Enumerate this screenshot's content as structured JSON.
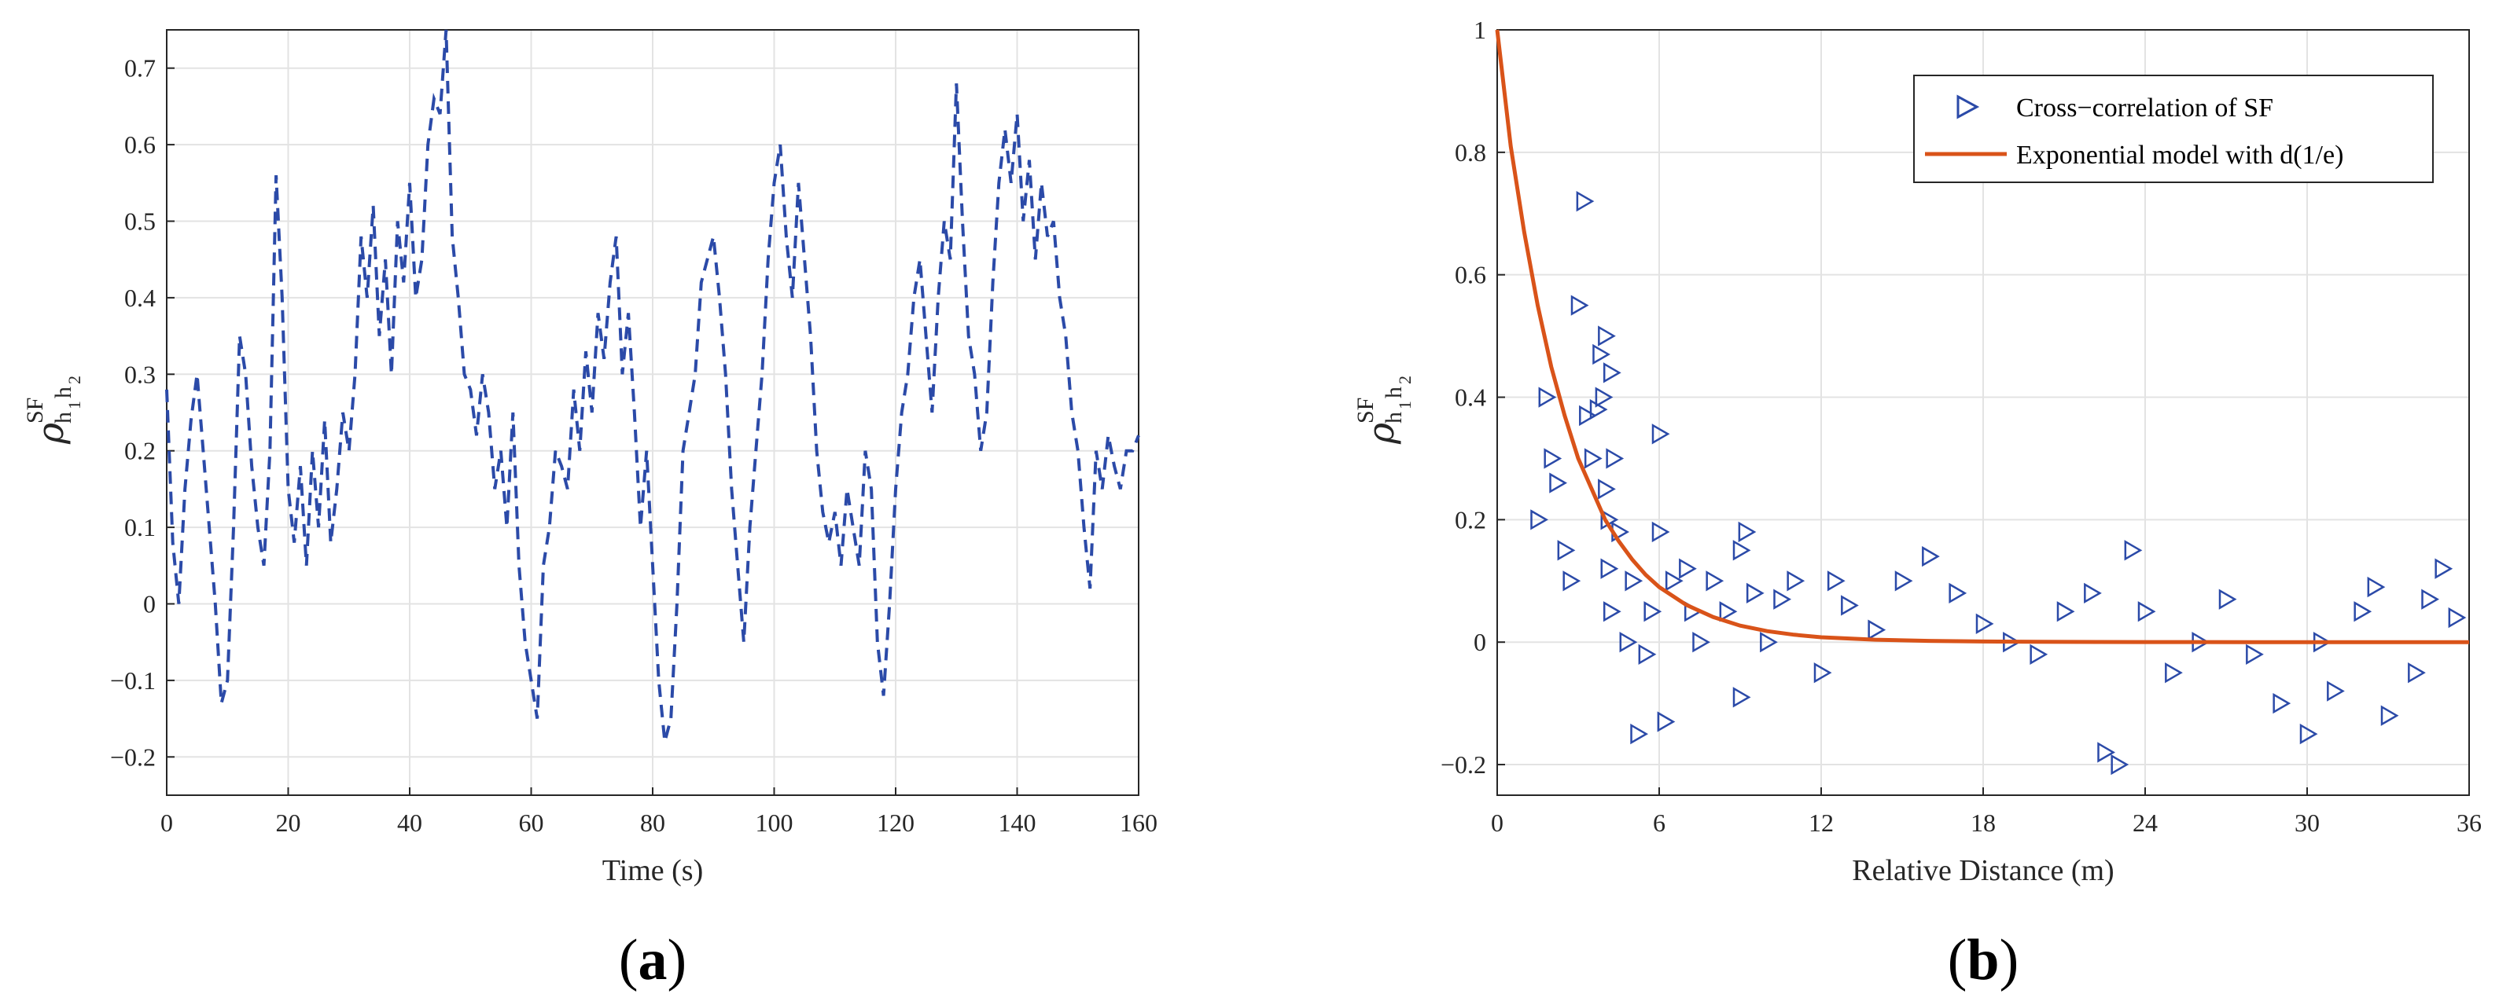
{
  "panels": [
    {
      "label_open": "(",
      "label_letter": "a",
      "label_close": ")"
    },
    {
      "label_open": "(",
      "label_letter": "b",
      "label_close": ")"
    }
  ],
  "chart_data": [
    {
      "type": "line",
      "xlabel": "Time (s)",
      "ylabel_symbol": "ρ",
      "ylabel_superscript": "SF",
      "ylabel_subscript": "h",
      "ylabel_sub1": "1",
      "ylabel_sub2": "h",
      "ylabel_sub3": "2",
      "xlim": [
        0,
        160
      ],
      "ylim": [
        -0.25,
        0.75
      ],
      "xticks": [
        0,
        20,
        40,
        60,
        80,
        100,
        120,
        140,
        160
      ],
      "yticks": [
        -0.2,
        -0.1,
        0,
        0.1,
        0.2,
        0.3,
        0.4,
        0.5,
        0.6,
        0.7
      ],
      "ytick_labels": [
        "−0.2",
        "−0.1",
        "0",
        "0.1",
        "0.2",
        "0.3",
        "0.4",
        "0.5",
        "0.6",
        "0.7"
      ],
      "grid": true,
      "line_style": "dashed",
      "color": "#2b4aa8",
      "series": [
        {
          "x": [
            0,
            1,
            2,
            3,
            4,
            5,
            6,
            7,
            8,
            9,
            10,
            11,
            12,
            13,
            14,
            15,
            16,
            17,
            18,
            19,
            20,
            21,
            22,
            23,
            24,
            25,
            26,
            27,
            28,
            29,
            30,
            31,
            32,
            33,
            34,
            35,
            36,
            37,
            38,
            39,
            40,
            41,
            42,
            43,
            44,
            45,
            46,
            47,
            48,
            49,
            50,
            51,
            52,
            53,
            54,
            55,
            56,
            57,
            58,
            59,
            60,
            61,
            62,
            63,
            64,
            65,
            66,
            67,
            68,
            69,
            70,
            71,
            72,
            73,
            74,
            75,
            76,
            77,
            78,
            79,
            80,
            81,
            82,
            83,
            84,
            85,
            86,
            87,
            88,
            89,
            90,
            91,
            92,
            93,
            94,
            95,
            96,
            97,
            98,
            99,
            100,
            101,
            102,
            103,
            104,
            105,
            106,
            107,
            108,
            109,
            110,
            111,
            112,
            113,
            114,
            115,
            116,
            117,
            118,
            119,
            120,
            121,
            122,
            123,
            124,
            125,
            126,
            127,
            128,
            129,
            130,
            131,
            132,
            133,
            134,
            135,
            136,
            137,
            138,
            139,
            140,
            141,
            142,
            143,
            144,
            145,
            146,
            147,
            148,
            149,
            150,
            151,
            152,
            153,
            154,
            155,
            156,
            157,
            158,
            159,
            160
          ],
          "y": [
            0.28,
            0.08,
            0.0,
            0.15,
            0.24,
            0.3,
            0.2,
            0.1,
            0.0,
            -0.13,
            -0.1,
            0.1,
            0.35,
            0.3,
            0.18,
            0.1,
            0.05,
            0.2,
            0.56,
            0.4,
            0.15,
            0.08,
            0.18,
            0.05,
            0.2,
            0.1,
            0.24,
            0.08,
            0.15,
            0.25,
            0.2,
            0.3,
            0.48,
            0.4,
            0.52,
            0.35,
            0.45,
            0.3,
            0.5,
            0.42,
            0.55,
            0.4,
            0.45,
            0.6,
            0.66,
            0.64,
            0.75,
            0.48,
            0.4,
            0.3,
            0.28,
            0.22,
            0.3,
            0.25,
            0.15,
            0.2,
            0.1,
            0.25,
            0.05,
            -0.05,
            -0.1,
            -0.15,
            0.05,
            0.1,
            0.2,
            0.18,
            0.15,
            0.28,
            0.2,
            0.33,
            0.25,
            0.38,
            0.32,
            0.42,
            0.48,
            0.3,
            0.38,
            0.25,
            0.1,
            0.2,
            0.05,
            -0.1,
            -0.18,
            -0.15,
            0.0,
            0.2,
            0.25,
            0.3,
            0.42,
            0.45,
            0.48,
            0.4,
            0.3,
            0.15,
            0.05,
            -0.05,
            0.1,
            0.2,
            0.3,
            0.45,
            0.55,
            0.6,
            0.48,
            0.4,
            0.55,
            0.45,
            0.35,
            0.2,
            0.12,
            0.08,
            0.12,
            0.05,
            0.15,
            0.1,
            0.05,
            0.2,
            0.15,
            -0.05,
            -0.12,
            0.0,
            0.15,
            0.25,
            0.3,
            0.4,
            0.45,
            0.35,
            0.25,
            0.4,
            0.5,
            0.45,
            0.68,
            0.5,
            0.35,
            0.3,
            0.2,
            0.25,
            0.42,
            0.55,
            0.62,
            0.55,
            0.64,
            0.5,
            0.58,
            0.45,
            0.55,
            0.48,
            0.5,
            0.4,
            0.35,
            0.25,
            0.2,
            0.1,
            0.02,
            0.2,
            0.15,
            0.22,
            0.18,
            0.15,
            0.2,
            0.2,
            0.22
          ]
        }
      ]
    },
    {
      "type": "scatter",
      "xlabel": "Relative Distance (m)",
      "ylabel_symbol": "ρ",
      "ylabel_superscript": "SF",
      "ylabel_subscript": "h",
      "ylabel_sub1": "1",
      "ylabel_sub2": "h",
      "ylabel_sub3": "2",
      "xlim": [
        0,
        36
      ],
      "ylim": [
        -0.25,
        1
      ],
      "xticks": [
        0,
        6,
        12,
        18,
        24,
        30,
        36
      ],
      "yticks": [
        -0.2,
        0,
        0.2,
        0.4,
        0.6,
        0.8,
        1
      ],
      "ytick_labels": [
        "−0.2",
        "0",
        "0.2",
        "0.4",
        "0.6",
        "0.8",
        "1"
      ],
      "grid": true,
      "legend_position": "top-right",
      "legend": [
        "Cross−correlation of SF",
        "Exponential model with d(1/e)"
      ],
      "colors": {
        "scatter": "#2b4aa8",
        "model": "#d95319"
      },
      "series": [
        {
          "name": "Cross−correlation of SF",
          "marker": "triangle-right",
          "points": [
            [
              1.5,
              0.2
            ],
            [
              1.8,
              0.4
            ],
            [
              2,
              0.3
            ],
            [
              2.2,
              0.26
            ],
            [
              2.5,
              0.15
            ],
            [
              2.7,
              0.1
            ],
            [
              3.0,
              0.55
            ],
            [
              3.2,
              0.72
            ],
            [
              3.3,
              0.37
            ],
            [
              3.5,
              0.3
            ],
            [
              3.7,
              0.38
            ],
            [
              3.8,
              0.47
            ],
            [
              3.9,
              0.4
            ],
            [
              4.0,
              0.5
            ],
            [
              4.0,
              0.25
            ],
            [
              4.1,
              0.2
            ],
            [
              4.1,
              0.12
            ],
            [
              4.2,
              0.05
            ],
            [
              4.2,
              0.44
            ],
            [
              4.3,
              0.3
            ],
            [
              4.5,
              0.18
            ],
            [
              4.8,
              0.0
            ],
            [
              5.0,
              0.1
            ],
            [
              5.2,
              -0.15
            ],
            [
              5.5,
              -0.02
            ],
            [
              5.7,
              0.05
            ],
            [
              6.0,
              0.34
            ],
            [
              6.0,
              0.18
            ],
            [
              6.2,
              -0.13
            ],
            [
              6.5,
              0.1
            ],
            [
              7.0,
              0.12
            ],
            [
              7.2,
              0.05
            ],
            [
              7.5,
              0.0
            ],
            [
              8.0,
              0.1
            ],
            [
              8.5,
              0.05
            ],
            [
              9.0,
              0.15
            ],
            [
              9.0,
              -0.09
            ],
            [
              9.2,
              0.18
            ],
            [
              9.5,
              0.08
            ],
            [
              10.0,
              0.0
            ],
            [
              10.5,
              0.07
            ],
            [
              11.0,
              0.1
            ],
            [
              12.0,
              -0.05
            ],
            [
              12.5,
              0.1
            ],
            [
              13.0,
              0.06
            ],
            [
              14.0,
              0.02
            ],
            [
              15.0,
              0.1
            ],
            [
              16.0,
              0.14
            ],
            [
              17.0,
              0.08
            ],
            [
              18.0,
              0.03
            ],
            [
              19.0,
              0.0
            ],
            [
              20.0,
              -0.02
            ],
            [
              21.0,
              0.05
            ],
            [
              22.0,
              0.08
            ],
            [
              22.5,
              -0.18
            ],
            [
              23.0,
              -0.2
            ],
            [
              23.5,
              0.15
            ],
            [
              24.0,
              0.05
            ],
            [
              25.0,
              -0.05
            ],
            [
              26.0,
              0.0
            ],
            [
              27.0,
              0.07
            ],
            [
              28.0,
              -0.02
            ],
            [
              29.0,
              -0.1
            ],
            [
              30.0,
              -0.15
            ],
            [
              30.5,
              0.0
            ],
            [
              31.0,
              -0.08
            ],
            [
              32.0,
              0.05
            ],
            [
              32.5,
              0.09
            ],
            [
              33.0,
              -0.12
            ],
            [
              34.0,
              -0.05
            ],
            [
              34.5,
              0.07
            ],
            [
              35.0,
              0.12
            ],
            [
              35.5,
              0.04
            ]
          ]
        },
        {
          "name": "Exponential model with d(1/e)",
          "type": "line",
          "x": [
            0,
            0.5,
            1,
            1.5,
            2,
            2.5,
            3,
            3.5,
            4,
            4.5,
            5,
            5.5,
            6,
            7,
            8,
            9,
            10,
            11,
            12,
            14,
            16,
            18,
            20,
            24,
            28,
            32,
            36
          ],
          "y": [
            1.0,
            0.81,
            0.67,
            0.55,
            0.45,
            0.37,
            0.3,
            0.25,
            0.2,
            0.165,
            0.135,
            0.11,
            0.09,
            0.061,
            0.041,
            0.027,
            0.018,
            0.012,
            0.008,
            0.004,
            0.002,
            0.001,
            0.0005,
            0.0001,
            0,
            0,
            0
          ]
        }
      ]
    }
  ]
}
